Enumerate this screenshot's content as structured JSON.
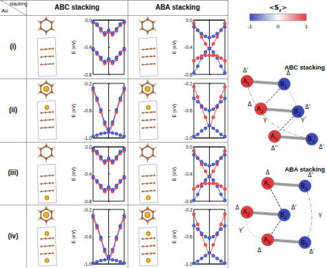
{
  "header": {
    "corner_top": "stacking",
    "corner_bottom": "Au",
    "columns": [
      "ABC stacking",
      "ABA stacking"
    ]
  },
  "rows": [
    "(i)",
    "(ii)",
    "(iii)",
    "(iv)"
  ],
  "chart_data": [
    {
      "type": "line",
      "ylabel": "E (eV)",
      "x": [
        -1,
        -0.75,
        -0.5,
        -0.25,
        0,
        0.25,
        0.5,
        0.75,
        1
      ],
      "xlim": [
        -1,
        1
      ],
      "ylim": [
        -0.8,
        0
      ],
      "yticks": [
        {
          "value": 0,
          "label": "0.0"
        },
        -0.4,
        -0.8
      ],
      "tick_labels": "y",
      "marker": "circle",
      "line_style": "solid",
      "series": [
        {
          "color": "#e0383c",
          "values": [
            -0.04,
            -0.08,
            -0.16,
            -0.22,
            -0.18,
            -0.22,
            -0.16,
            -0.08,
            -0.04
          ]
        },
        {
          "color": "#3a48b8",
          "values": [
            -0.02,
            -0.06,
            -0.13,
            -0.19,
            -0.15,
            -0.19,
            -0.13,
            -0.06,
            -0.02
          ]
        },
        {
          "color": "#e0383c",
          "values": [
            -0.44,
            -0.5,
            -0.58,
            -0.64,
            -0.6,
            -0.64,
            -0.58,
            -0.5,
            -0.44
          ]
        },
        {
          "color": "#3a48b8",
          "values": [
            -0.42,
            -0.48,
            -0.55,
            -0.61,
            -0.57,
            -0.61,
            -0.55,
            -0.48,
            -0.42
          ]
        }
      ]
    },
    {
      "type": "line",
      "ylabel": "E (eV)",
      "x": [
        -1,
        -0.75,
        -0.5,
        -0.25,
        0,
        0.25,
        0.5,
        0.75,
        1
      ],
      "xlim": [
        -1,
        1
      ],
      "ylim": [
        -0.8,
        0
      ],
      "yticks": [
        {
          "value": 0,
          "label": "0.0"
        },
        -0.4,
        -0.8
      ],
      "tick_labels": "y",
      "marker": "circle",
      "line_style": "solid",
      "series": [
        {
          "color": "#e0383c",
          "values": [
            -0.05,
            -0.15,
            -0.25,
            -0.35,
            -0.42,
            -0.35,
            -0.25,
            -0.15,
            -0.05
          ]
        },
        {
          "color": "#3a48b8",
          "values": [
            -0.78,
            -0.68,
            -0.56,
            -0.47,
            -0.42,
            -0.47,
            -0.56,
            -0.68,
            -0.78
          ]
        },
        {
          "color": "#3a48b8",
          "values": [
            -0.1,
            -0.15,
            -0.2,
            -0.24,
            -0.26,
            -0.24,
            -0.2,
            -0.15,
            -0.1
          ]
        },
        {
          "color": "#e0383c",
          "values": [
            -0.6,
            -0.56,
            -0.53,
            -0.52,
            -0.52,
            -0.52,
            -0.53,
            -0.56,
            -0.6
          ]
        }
      ]
    },
    {
      "type": "line",
      "ylabel": "E (eV)",
      "x": [
        -1,
        -0.75,
        -0.5,
        -0.25,
        0,
        0.25,
        0.5,
        0.75,
        1
      ],
      "xlim": [
        -1,
        1
      ],
      "ylim": [
        -1.0,
        -0.2
      ],
      "yticks": [
        -0.2,
        -0.6,
        {
          "value": -1,
          "label": "-1.0"
        }
      ],
      "tick_labels": "y",
      "marker": "circle",
      "line_style": "solid",
      "series": [
        {
          "color": "#e0383c",
          "values": [
            -0.3,
            -0.45,
            -0.62,
            -0.8,
            -0.9,
            -0.8,
            -0.62,
            -0.45,
            -0.3
          ]
        },
        {
          "color": "#3a48b8",
          "values": [
            -0.27,
            -0.42,
            -0.59,
            -0.77,
            -0.87,
            -0.77,
            -0.59,
            -0.42,
            -0.27
          ]
        },
        {
          "color": "#3a48b8",
          "values": [
            -0.98,
            -0.96,
            -0.94,
            -0.93,
            -0.92,
            -0.93,
            -0.94,
            -0.96,
            -0.98
          ]
        }
      ]
    },
    {
      "type": "line",
      "ylabel": "E (eV)",
      "x": [
        -1,
        -0.75,
        -0.5,
        -0.25,
        0,
        0.25,
        0.5,
        0.75,
        1
      ],
      "xlim": [
        -1,
        1
      ],
      "ylim": [
        -1.0,
        -0.2
      ],
      "yticks": [
        -0.2,
        -0.6,
        {
          "value": -1,
          "label": "-1.0"
        }
      ],
      "tick_labels": "y",
      "marker": "circle",
      "line_style": "solid",
      "series": [
        {
          "color": "#e0383c",
          "values": [
            -0.25,
            -0.4,
            -0.55,
            -0.7,
            -0.82,
            -0.7,
            -0.55,
            -0.4,
            -0.25
          ]
        },
        {
          "color": "#3a48b8",
          "values": [
            -0.98,
            -0.95,
            -0.9,
            -0.86,
            -0.82,
            -0.86,
            -0.9,
            -0.95,
            -0.98
          ]
        },
        {
          "color": "#3a48b8",
          "values": [
            -0.42,
            -0.47,
            -0.53,
            -0.58,
            -0.6,
            -0.58,
            -0.53,
            -0.47,
            -0.42
          ]
        }
      ]
    },
    {
      "type": "line",
      "ylabel": "E (eV)",
      "x": [
        -1,
        -0.75,
        -0.5,
        -0.25,
        0,
        0.25,
        0.5,
        0.75,
        1
      ],
      "xlim": [
        -1,
        1
      ],
      "ylim": [
        -0.8,
        0
      ],
      "yticks": [
        {
          "value": 0,
          "label": "0.0"
        },
        -0.4,
        -0.8
      ],
      "tick_labels": "y",
      "marker": "circle",
      "line_style": "solid",
      "series": [
        {
          "color": "#e0383c",
          "values": [
            -0.06,
            -0.1,
            -0.18,
            -0.24,
            -0.2,
            -0.24,
            -0.18,
            -0.1,
            -0.06
          ]
        },
        {
          "color": "#3a48b8",
          "values": [
            -0.03,
            -0.07,
            -0.15,
            -0.21,
            -0.17,
            -0.21,
            -0.15,
            -0.07,
            -0.03
          ]
        },
        {
          "color": "#e0383c",
          "values": [
            -0.46,
            -0.52,
            -0.6,
            -0.66,
            -0.62,
            -0.66,
            -0.6,
            -0.52,
            -0.46
          ]
        },
        {
          "color": "#3a48b8",
          "values": [
            -0.44,
            -0.5,
            -0.57,
            -0.63,
            -0.59,
            -0.63,
            -0.57,
            -0.5,
            -0.44
          ]
        }
      ]
    },
    {
      "type": "line",
      "ylabel": "E (eV)",
      "x": [
        -1,
        -0.75,
        -0.5,
        -0.25,
        0,
        0.25,
        0.5,
        0.75,
        1
      ],
      "xlim": [
        -1,
        1
      ],
      "ylim": [
        -0.8,
        0
      ],
      "yticks": [
        {
          "value": 0,
          "label": "0.0"
        },
        -0.4,
        -0.8
      ],
      "tick_labels": "y",
      "marker": "circle",
      "line_style": "solid",
      "series": [
        {
          "color": "#e0383c",
          "values": [
            -0.06,
            -0.16,
            -0.26,
            -0.36,
            -0.44,
            -0.36,
            -0.26,
            -0.16,
            -0.06
          ]
        },
        {
          "color": "#3a48b8",
          "values": [
            -0.79,
            -0.7,
            -0.58,
            -0.49,
            -0.44,
            -0.49,
            -0.58,
            -0.7,
            -0.79
          ]
        },
        {
          "color": "#3a48b8",
          "values": [
            -0.12,
            -0.17,
            -0.22,
            -0.26,
            -0.28,
            -0.26,
            -0.22,
            -0.17,
            -0.12
          ]
        },
        {
          "color": "#e0383c",
          "values": [
            -0.62,
            -0.58,
            -0.55,
            -0.54,
            -0.54,
            -0.54,
            -0.55,
            -0.58,
            -0.62
          ]
        }
      ]
    },
    {
      "type": "line",
      "ylabel": "E (eV)",
      "x": [
        -1,
        -0.75,
        -0.5,
        -0.25,
        0,
        0.25,
        0.5,
        0.75,
        1
      ],
      "xlim": [
        -1,
        1
      ],
      "ylim": [
        -1.0,
        -0.2
      ],
      "yticks": [
        -0.2,
        -0.6,
        {
          "value": -1,
          "label": "-1.0"
        }
      ],
      "tick_labels": "y",
      "marker": "circle",
      "line_style": "solid",
      "series": [
        {
          "color": "#e0383c",
          "values": [
            -0.32,
            -0.47,
            -0.64,
            -0.82,
            -0.92,
            -0.82,
            -0.64,
            -0.47,
            -0.32
          ]
        },
        {
          "color": "#3a48b8",
          "values": [
            -0.29,
            -0.44,
            -0.61,
            -0.79,
            -0.89,
            -0.79,
            -0.61,
            -0.44,
            -0.29
          ]
        },
        {
          "color": "#3a48b8",
          "values": [
            -0.99,
            -0.97,
            -0.95,
            -0.94,
            -0.93,
            -0.94,
            -0.95,
            -0.97,
            -0.99
          ]
        }
      ]
    },
    {
      "type": "line",
      "ylabel": "E (eV)",
      "x": [
        -1,
        -0.75,
        -0.5,
        -0.25,
        0,
        0.25,
        0.5,
        0.75,
        1
      ],
      "xlim": [
        -1,
        1
      ],
      "ylim": [
        -1.0,
        -0.2
      ],
      "yticks": [
        -0.2,
        -0.6,
        {
          "value": -1,
          "label": "-1.0"
        }
      ],
      "tick_labels": "y",
      "marker": "circle",
      "line_style": "solid",
      "series": [
        {
          "color": "#e0383c",
          "values": [
            -0.27,
            -0.42,
            -0.57,
            -0.72,
            -0.84,
            -0.72,
            -0.57,
            -0.42,
            -0.27
          ]
        },
        {
          "color": "#3a48b8",
          "values": [
            -0.99,
            -0.96,
            -0.92,
            -0.88,
            -0.84,
            -0.88,
            -0.92,
            -0.96,
            -0.99
          ]
        },
        {
          "color": "#3a48b8",
          "values": [
            -0.44,
            -0.49,
            -0.55,
            -0.6,
            -0.62,
            -0.6,
            -0.55,
            -0.49,
            -0.44
          ]
        }
      ]
    }
  ],
  "colorbar": {
    "label": [
      "<S",
      "z",
      ">"
    ],
    "range": [
      -1,
      1
    ],
    "ticks": [
      -1,
      0,
      1
    ],
    "colors": [
      "#3a48b8",
      "#ffffff",
      "#e0383c"
    ]
  },
  "diagrams": [
    {
      "title": "ABC stacking",
      "nodes": [
        {
          "label": "A1",
          "color": "#e0383c"
        },
        {
          "label": "B1",
          "color": "#3a48b8"
        },
        {
          "label": "A2",
          "color": "#e0383c"
        },
        {
          "label": "B2",
          "color": "#3a48b8"
        },
        {
          "label": "A3",
          "color": "#e0383c"
        },
        {
          "label": "B3",
          "color": "#3a48b8"
        }
      ],
      "annotations": [
        "Δ'",
        "Δ",
        "Δ",
        "Δ'",
        "Δ''",
        "Δ'",
        "γ",
        "γ'"
      ]
    },
    {
      "title": "ABA stacking",
      "nodes": [
        {
          "label": "A1",
          "color": "#e0383c"
        },
        {
          "label": "B1",
          "color": "#3a48b8"
        },
        {
          "label": "A2",
          "color": "#e0383c"
        },
        {
          "label": "B2",
          "color": "#3a48b8"
        },
        {
          "label": "A3",
          "color": "#e0383c"
        },
        {
          "label": "B3",
          "color": "#3a48b8"
        }
      ],
      "annotations": [
        "Δ",
        "Δ'",
        "Δ",
        "Δ'",
        "Δ",
        "Δ'",
        "γ",
        "γ'"
      ]
    }
  ]
}
